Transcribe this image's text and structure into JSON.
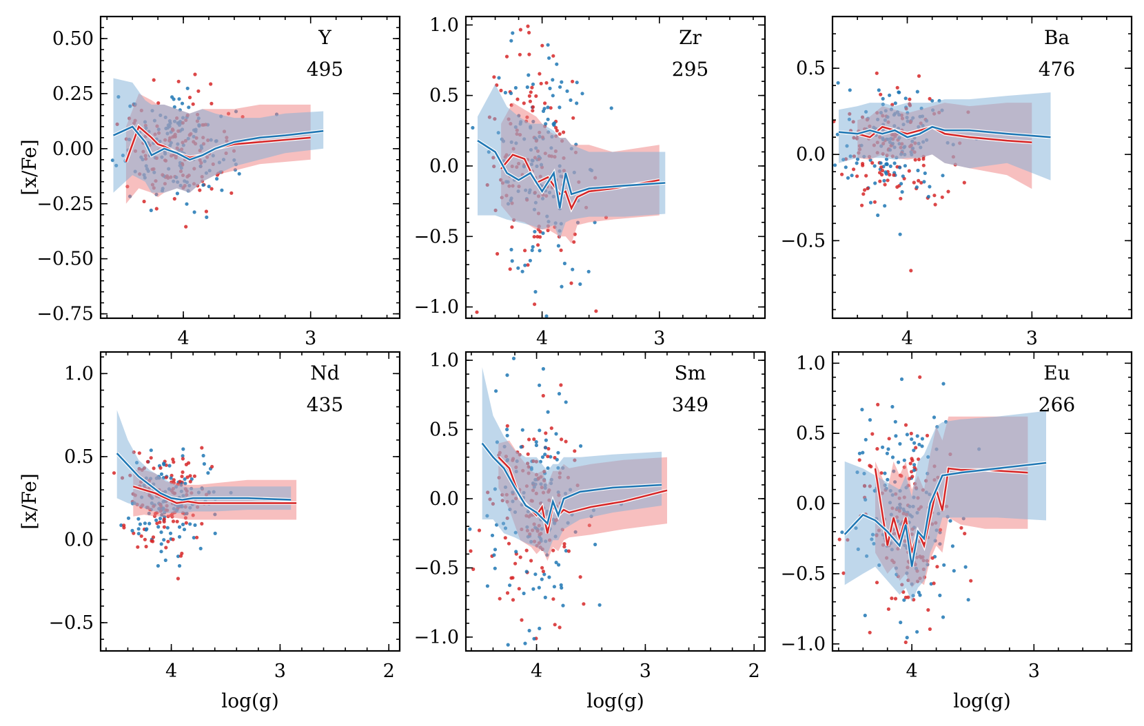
{
  "colors": {
    "red": "#d62728",
    "blue": "#1f77b4",
    "red_band": "#f08080",
    "blue_band": "#7fb0d8"
  },
  "chart_data": [
    {
      "type": "scatter",
      "element": "Y",
      "count": "495",
      "xlabel": "",
      "ylabel": "[x/Fe]",
      "xlim": [
        4.65,
        2.3
      ],
      "ylim": [
        -0.77,
        0.6
      ],
      "xticks": [
        4,
        3
      ],
      "xtick_labels": [
        "4",
        "3"
      ],
      "yticks": [
        0.5,
        0.25,
        0.0,
        -0.25,
        -0.5,
        -0.75
      ],
      "ytick_labels": [
        "0.50",
        "0.25",
        "0.00",
        "−0.25",
        "−0.50",
        "−0.75"
      ],
      "series": [
        {
          "color": "red",
          "x": [
            4.45,
            4.35,
            4.25,
            4.2,
            4.15,
            4.05,
            3.95,
            3.85,
            3.75,
            3.6,
            3.4,
            3.2,
            3.0
          ],
          "median": [
            -0.06,
            0.1,
            0.05,
            0.02,
            0.01,
            -0.02,
            -0.04,
            -0.03,
            0.0,
            0.02,
            0.03,
            0.04,
            0.05
          ],
          "lo": [
            -0.25,
            -0.18,
            -0.2,
            -0.22,
            -0.2,
            -0.18,
            -0.2,
            -0.15,
            -0.12,
            -0.1,
            -0.07,
            -0.06,
            -0.05
          ],
          "hi": [
            0.1,
            0.25,
            0.22,
            0.2,
            0.2,
            0.18,
            0.16,
            0.18,
            0.18,
            0.18,
            0.2,
            0.2,
            0.2
          ]
        },
        {
          "color": "blue",
          "x": [
            4.55,
            4.4,
            4.3,
            4.25,
            4.15,
            4.05,
            3.95,
            3.85,
            3.75,
            3.6,
            3.4,
            3.2,
            2.9
          ],
          "median": [
            0.06,
            0.1,
            0.03,
            -0.03,
            0.0,
            -0.02,
            -0.05,
            -0.03,
            0.0,
            0.03,
            0.05,
            0.06,
            0.08
          ],
          "lo": [
            -0.2,
            -0.12,
            -0.15,
            -0.2,
            -0.2,
            -0.18,
            -0.2,
            -0.15,
            -0.12,
            -0.08,
            -0.05,
            -0.02,
            -0.0
          ],
          "hi": [
            0.32,
            0.3,
            0.22,
            0.2,
            0.2,
            0.18,
            0.16,
            0.18,
            0.16,
            0.14,
            0.14,
            0.16,
            0.17
          ]
        }
      ],
      "scatter_extent": {
        "x": [
          3.55,
          4.55
        ],
        "y": [
          -0.3,
          0.3
        ]
      }
    },
    {
      "type": "scatter",
      "element": "Zr",
      "count": "295",
      "xlabel": "",
      "ylabel": "",
      "xlim": [
        4.65,
        2.1
      ],
      "ylim": [
        -1.08,
        1.06
      ],
      "xticks": [
        4,
        3
      ],
      "xtick_labels": [
        "4",
        "3"
      ],
      "yticks": [
        1.0,
        0.5,
        0.0,
        -0.5,
        -1.0
      ],
      "ytick_labels": [
        "1.0",
        "0.5",
        "0.0",
        "−0.5",
        "−1.0"
      ],
      "series": [
        {
          "color": "red",
          "x": [
            4.35,
            4.25,
            4.15,
            4.05,
            3.95,
            3.85,
            3.8,
            3.75,
            3.7,
            3.6,
            3.4,
            3.0
          ],
          "median": [
            -0.02,
            0.08,
            0.05,
            -0.12,
            -0.08,
            -0.2,
            -0.18,
            -0.3,
            -0.22,
            -0.18,
            -0.16,
            -0.1
          ],
          "lo": [
            -0.28,
            -0.38,
            -0.4,
            -0.45,
            -0.45,
            -0.5,
            -0.5,
            -0.55,
            -0.42,
            -0.4,
            -0.38,
            -0.35
          ],
          "hi": [
            0.3,
            0.45,
            0.4,
            0.35,
            0.25,
            0.2,
            0.2,
            0.15,
            0.15,
            0.15,
            0.1,
            0.15
          ]
        },
        {
          "color": "blue",
          "x": [
            4.55,
            4.4,
            4.3,
            4.2,
            4.1,
            4.0,
            3.9,
            3.85,
            3.8,
            3.75,
            3.6,
            3.3,
            2.95
          ],
          "median": [
            0.18,
            0.1,
            -0.05,
            -0.1,
            -0.05,
            -0.18,
            -0.05,
            -0.3,
            -0.05,
            -0.2,
            -0.16,
            -0.14,
            -0.12
          ],
          "lo": [
            -0.35,
            -0.35,
            -0.38,
            -0.4,
            -0.42,
            -0.45,
            -0.42,
            -0.52,
            -0.4,
            -0.38,
            -0.36,
            -0.36,
            -0.34
          ],
          "hi": [
            0.35,
            0.58,
            0.42,
            0.35,
            0.3,
            0.3,
            0.25,
            0.2,
            0.2,
            0.15,
            0.1,
            0.1,
            0.1
          ]
        }
      ],
      "scatter_extent": {
        "x": [
          3.55,
          4.55
        ],
        "y": [
          -0.9,
          0.9
        ]
      }
    },
    {
      "type": "scatter",
      "element": "Ba",
      "count": "476",
      "xlabel": "",
      "ylabel": "",
      "xlim": [
        4.6,
        2.2
      ],
      "ylim": [
        -0.95,
        0.8
      ],
      "xticks": [
        4,
        3
      ],
      "xtick_labels": [
        "4",
        "3"
      ],
      "yticks": [
        0.5,
        0.0,
        -0.5
      ],
      "ytick_labels": [
        "0.5",
        "0.0",
        "−0.5"
      ],
      "series": [
        {
          "color": "red",
          "x": [
            4.4,
            4.3,
            4.2,
            4.1,
            4.0,
            3.9,
            3.8,
            3.7,
            3.5,
            3.2,
            3.0
          ],
          "median": [
            0.12,
            0.1,
            0.16,
            0.14,
            0.12,
            0.14,
            0.16,
            0.12,
            0.1,
            0.08,
            0.07
          ],
          "lo": [
            -0.02,
            -0.03,
            -0.0,
            -0.02,
            -0.03,
            -0.02,
            0.0,
            -0.05,
            -0.08,
            -0.12,
            -0.2
          ],
          "hi": [
            0.2,
            0.22,
            0.28,
            0.26,
            0.24,
            0.26,
            0.28,
            0.3,
            0.28,
            0.3,
            0.3
          ]
        },
        {
          "color": "blue",
          "x": [
            4.55,
            4.4,
            4.3,
            4.2,
            4.1,
            4.0,
            3.9,
            3.8,
            3.7,
            3.5,
            3.2,
            2.85
          ],
          "median": [
            0.13,
            0.12,
            0.14,
            0.12,
            0.14,
            0.1,
            0.12,
            0.16,
            0.14,
            0.14,
            0.12,
            0.1
          ],
          "lo": [
            -0.05,
            -0.02,
            -0.02,
            -0.02,
            -0.03,
            -0.02,
            -0.02,
            -0.0,
            -0.05,
            -0.08,
            -0.05,
            -0.15
          ],
          "hi": [
            0.26,
            0.28,
            0.3,
            0.3,
            0.28,
            0.3,
            0.3,
            0.3,
            0.32,
            0.32,
            0.34,
            0.36
          ]
        }
      ],
      "scatter_extent": {
        "x": [
          3.6,
          4.6
        ],
        "y": [
          -0.35,
          0.45
        ]
      }
    },
    {
      "type": "scatter",
      "element": "Nd",
      "count": "435",
      "xlabel": "log(g)",
      "ylabel": "[x/Fe]",
      "xlim": [
        4.65,
        1.9
      ],
      "ylim": [
        -0.67,
        1.13
      ],
      "xticks": [
        4,
        3,
        2
      ],
      "xtick_labels": [
        "4",
        "3",
        "2"
      ],
      "yticks": [
        1.0,
        0.5,
        0.0,
        -0.5
      ],
      "ytick_labels": [
        "1.0",
        "0.5",
        "0.0",
        "−0.5"
      ],
      "series": [
        {
          "color": "red",
          "x": [
            4.35,
            4.25,
            4.15,
            4.05,
            3.95,
            3.85,
            3.75,
            3.6,
            3.3,
            2.85
          ],
          "median": [
            0.32,
            0.3,
            0.28,
            0.25,
            0.22,
            0.23,
            0.22,
            0.22,
            0.22,
            0.22
          ],
          "lo": [
            0.14,
            0.15,
            0.14,
            0.14,
            0.13,
            0.12,
            0.12,
            0.12,
            0.12,
            0.12
          ],
          "hi": [
            0.42,
            0.42,
            0.4,
            0.35,
            0.34,
            0.33,
            0.33,
            0.34,
            0.36,
            0.36
          ]
        },
        {
          "color": "blue",
          "x": [
            4.5,
            4.4,
            4.3,
            4.2,
            4.1,
            4.0,
            3.9,
            3.8,
            3.6,
            3.3,
            2.9
          ],
          "median": [
            0.52,
            0.45,
            0.38,
            0.33,
            0.28,
            0.25,
            0.24,
            0.25,
            0.25,
            0.25,
            0.24
          ],
          "lo": [
            0.25,
            0.22,
            0.2,
            0.18,
            0.16,
            0.16,
            0.16,
            0.17,
            0.17,
            0.18,
            0.18
          ],
          "hi": [
            0.78,
            0.6,
            0.48,
            0.42,
            0.38,
            0.34,
            0.32,
            0.31,
            0.32,
            0.32,
            0.32
          ]
        }
      ],
      "scatter_extent": {
        "x": [
          3.6,
          4.45
        ],
        "y": [
          -0.1,
          0.55
        ]
      }
    },
    {
      "type": "scatter",
      "element": "Sm",
      "count": "349",
      "xlabel": "log(g)",
      "ylabel": "",
      "xlim": [
        4.65,
        1.9
      ],
      "ylim": [
        -1.1,
        1.06
      ],
      "xticks": [
        4,
        3,
        2
      ],
      "xtick_labels": [
        "4",
        "3",
        "2"
      ],
      "yticks": [
        1.0,
        0.5,
        0.0,
        -0.5,
        -1.0
      ],
      "ytick_labels": [
        "1.0",
        "0.5",
        "0.0",
        "−0.5",
        "−1.0"
      ],
      "series": [
        {
          "color": "red",
          "x": [
            4.35,
            4.25,
            4.15,
            4.05,
            4.0,
            3.95,
            3.9,
            3.85,
            3.8,
            3.75,
            3.7,
            3.5,
            3.2,
            2.8
          ],
          "median": [
            0.3,
            0.22,
            0.0,
            -0.08,
            -0.12,
            -0.06,
            -0.25,
            -0.05,
            -0.12,
            -0.08,
            -0.1,
            -0.06,
            -0.02,
            0.06
          ],
          "lo": [
            0.08,
            -0.08,
            -0.3,
            -0.35,
            -0.4,
            -0.36,
            -0.45,
            -0.35,
            -0.38,
            -0.3,
            -0.28,
            -0.26,
            -0.22,
            -0.18
          ],
          "hi": [
            0.4,
            0.42,
            0.3,
            0.2,
            0.18,
            0.2,
            0.1,
            0.2,
            0.2,
            0.25,
            0.22,
            0.25,
            0.28,
            0.3
          ]
        },
        {
          "color": "blue",
          "x": [
            4.5,
            4.4,
            4.3,
            4.2,
            4.1,
            4.0,
            3.9,
            3.85,
            3.8,
            3.75,
            3.6,
            3.3,
            2.85
          ],
          "median": [
            0.4,
            0.3,
            0.22,
            0.08,
            -0.05,
            -0.1,
            -0.18,
            -0.02,
            -0.12,
            0.0,
            0.05,
            0.08,
            0.1
          ],
          "lo": [
            -0.15,
            -0.15,
            -0.25,
            -0.28,
            -0.32,
            -0.35,
            -0.4,
            -0.3,
            -0.3,
            -0.22,
            -0.15,
            -0.1,
            -0.05
          ],
          "hi": [
            0.95,
            0.6,
            0.45,
            0.35,
            0.3,
            0.3,
            0.2,
            0.25,
            0.25,
            0.3,
            0.3,
            0.32,
            0.34
          ]
        }
      ],
      "scatter_extent": {
        "x": [
          3.55,
          4.5
        ],
        "y": [
          -0.95,
          0.75
        ]
      }
    },
    {
      "type": "scatter",
      "element": "Eu",
      "count": "266",
      "xlabel": "log(g)",
      "ylabel": "",
      "xlim": [
        4.65,
        2.2
      ],
      "ylim": [
        -1.05,
        1.08
      ],
      "xticks": [
        4,
        3
      ],
      "xtick_labels": [
        "4",
        "3"
      ],
      "yticks": [
        1.0,
        0.5,
        0.0,
        -0.5,
        -1.0
      ],
      "ytick_labels": [
        "1.0",
        "0.5",
        "0.0",
        "−0.5",
        "−1.0"
      ],
      "series": [
        {
          "color": "red",
          "x": [
            4.3,
            4.2,
            4.15,
            4.1,
            4.05,
            4.0,
            3.95,
            3.9,
            3.85,
            3.8,
            3.75,
            3.7,
            3.6,
            3.4,
            3.05
          ],
          "median": [
            0.25,
            -0.3,
            -0.1,
            -0.25,
            -0.1,
            -0.35,
            -0.2,
            -0.3,
            -0.1,
            0.1,
            -0.05,
            0.25,
            0.24,
            0.24,
            0.22
          ],
          "lo": [
            -0.35,
            -0.5,
            -0.45,
            -0.55,
            -0.5,
            -0.6,
            -0.55,
            -0.58,
            -0.4,
            -0.3,
            -0.35,
            -0.1,
            -0.15,
            -0.18,
            -0.18
          ],
          "hi": [
            0.3,
            0.1,
            0.3,
            0.2,
            0.3,
            0.1,
            0.2,
            0.1,
            0.35,
            0.55,
            0.45,
            0.62,
            0.62,
            0.62,
            0.62
          ]
        },
        {
          "color": "blue",
          "x": [
            4.55,
            4.4,
            4.3,
            4.2,
            4.1,
            4.05,
            4.0,
            3.95,
            3.9,
            3.85,
            3.8,
            3.75,
            3.6,
            3.3,
            2.9
          ],
          "median": [
            -0.22,
            -0.08,
            -0.12,
            -0.2,
            -0.3,
            -0.15,
            -0.45,
            -0.2,
            -0.25,
            0.0,
            0.1,
            0.2,
            0.22,
            0.25,
            0.29
          ],
          "lo": [
            -0.58,
            -0.5,
            -0.45,
            -0.55,
            -0.65,
            -0.6,
            -0.7,
            -0.6,
            -0.55,
            -0.35,
            -0.25,
            -0.1,
            -0.1,
            -0.1,
            -0.12
          ],
          "hi": [
            0.3,
            0.25,
            0.2,
            0.15,
            0.1,
            0.2,
            0.05,
            0.3,
            0.35,
            0.45,
            0.55,
            0.58,
            0.6,
            0.62,
            0.66
          ]
        }
      ],
      "scatter_extent": {
        "x": [
          3.6,
          4.45
        ],
        "y": [
          -0.95,
          0.75
        ]
      }
    }
  ]
}
